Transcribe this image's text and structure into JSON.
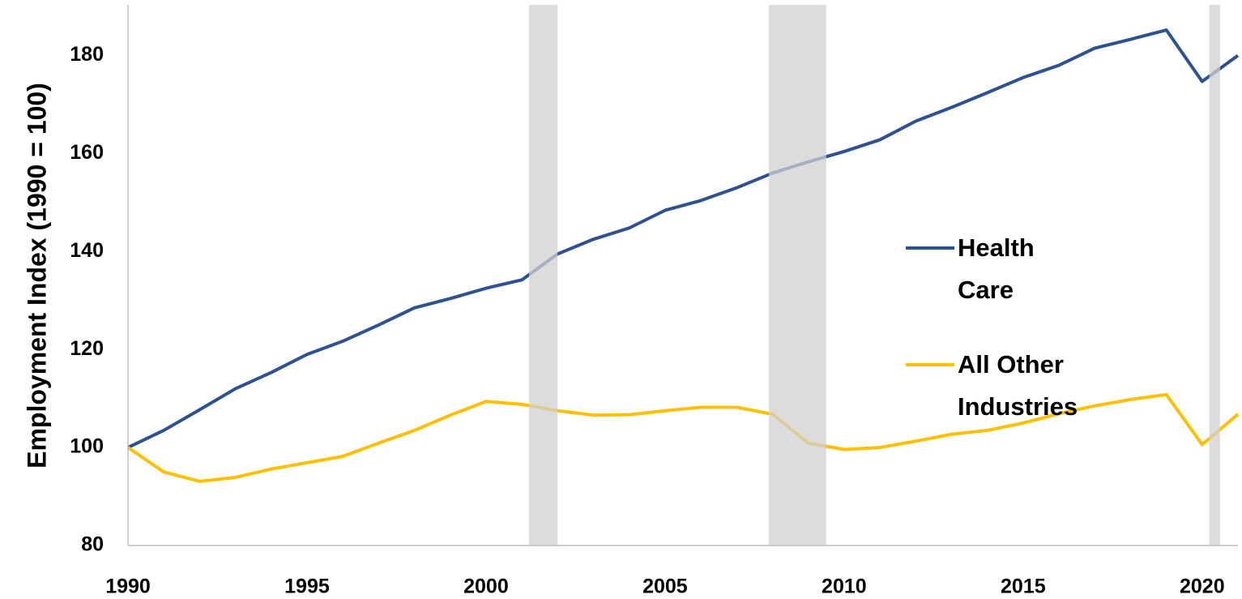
{
  "chart_data": {
    "type": "line",
    "y_label": "Employment Index (1990 = 100)",
    "x": [
      1990,
      1991,
      1992,
      1993,
      1994,
      1995,
      1996,
      1997,
      1998,
      1999,
      2000,
      2001,
      2002,
      2003,
      2004,
      2005,
      2006,
      2007,
      2008,
      2009,
      2010,
      2011,
      2012,
      2013,
      2014,
      2015,
      2016,
      2017,
      2018,
      2019,
      2020,
      2021
    ],
    "series": [
      {
        "name": "Health Care",
        "color": "#2e5190",
        "values": [
          100,
          103.5,
          107.7,
          112,
          115.3,
          119,
          121.7,
          125,
          128.5,
          130.4,
          132.5,
          134.2,
          139.5,
          142.5,
          144.8,
          148.4,
          150.4,
          153,
          156,
          158.3,
          160.4,
          162.8,
          166.6,
          169.4,
          172.4,
          175.5,
          178,
          181.5,
          183.3,
          185.2,
          174.7,
          180
        ]
      },
      {
        "name": "All Other Industries",
        "color": "#ffc000",
        "values": [
          100,
          95,
          93.1,
          93.9,
          95.6,
          96.9,
          98.2,
          100.9,
          103.5,
          106.6,
          109.4,
          108.8,
          107.5,
          106.6,
          106.7,
          107.5,
          108.2,
          108.2,
          106.8,
          100.9,
          99.6,
          100,
          101.3,
          102.7,
          103.5,
          105,
          106.9,
          108.5,
          109.8,
          110.8,
          100.6,
          106.8
        ]
      }
    ],
    "recessions": [
      [
        2001.2,
        2002.0
      ],
      [
        2007.9,
        2009.5
      ],
      [
        2020.2,
        2020.5
      ]
    ],
    "recession_color": "#d0d0d0",
    "xlim": [
      1990,
      2021
    ],
    "xticks": [
      1990,
      1995,
      2000,
      2005,
      2010,
      2015,
      2020
    ],
    "ylim": [
      80,
      190
    ],
    "yticks": [
      80,
      100,
      120,
      140,
      160,
      180
    ],
    "grid": false,
    "legend": "right"
  }
}
